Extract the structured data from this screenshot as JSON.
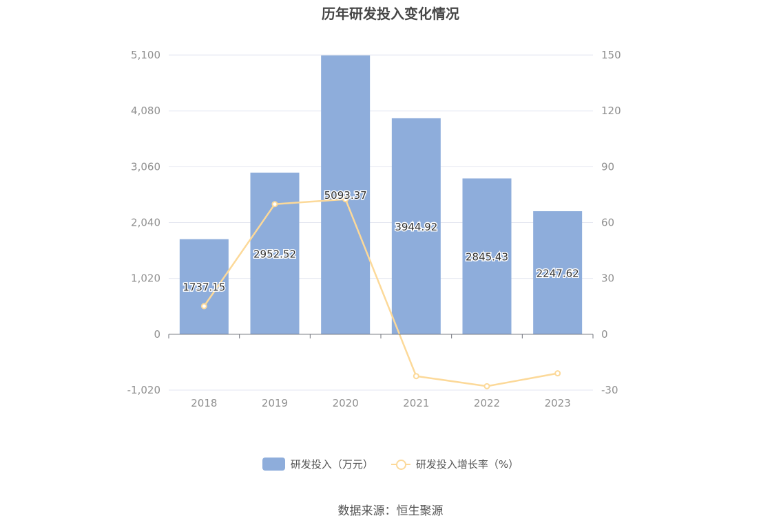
{
  "title": "历年研发投入变化情况",
  "source": "数据来源：恒生聚源",
  "colors": {
    "bar": "#8eaddb",
    "line": "#fcd999",
    "grid": "#e3e6f0",
    "axis": "#8f8f8f"
  },
  "chart_data": {
    "type": "bar",
    "categories": [
      "2018",
      "2019",
      "2020",
      "2021",
      "2022",
      "2023"
    ],
    "series": [
      {
        "name": "研发投入（万元）",
        "type": "bar",
        "axis": "left",
        "values": [
          1737.15,
          2952.52,
          5093.37,
          3944.92,
          2845.43,
          2247.62
        ],
        "labels": [
          "1737.15",
          "2952.52",
          "5093.37",
          "3944.92",
          "2845.43",
          "2247.62"
        ]
      },
      {
        "name": "研发投入增长率（%）",
        "type": "line",
        "axis": "right",
        "values": [
          15.1,
          69.9,
          72.5,
          -22.5,
          -27.9,
          -21.0
        ]
      }
    ],
    "y_left": {
      "ylim": [
        -1020,
        5100
      ],
      "ticks": [
        "-1,020",
        "0",
        "1,020",
        "2,040",
        "3,060",
        "4,080",
        "5,100"
      ]
    },
    "y_right": {
      "ylim": [
        -30,
        150
      ],
      "ticks": [
        "-30",
        "0",
        "30",
        "60",
        "90",
        "120",
        "150"
      ]
    },
    "grid": true,
    "legend_position": "bottom"
  }
}
